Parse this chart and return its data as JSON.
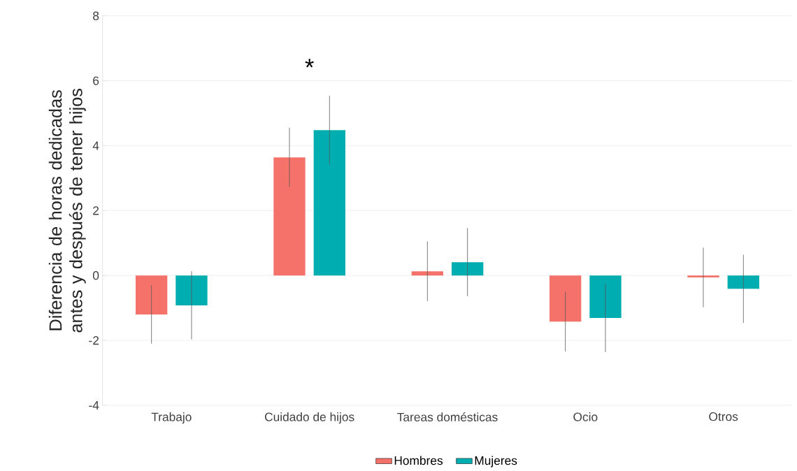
{
  "chart_data": {
    "type": "bar",
    "ylabel": "Diferencia de horas dedicadas antes y después de tener hijos",
    "categories": [
      "Trabajo",
      "Cuidado de hijos",
      "Tareas domésticas",
      "Ocio",
      "Otros"
    ],
    "series": [
      {
        "name": "Hombres",
        "color": "#f4726a",
        "values": [
          -1.2,
          3.64,
          0.13,
          -1.42,
          -0.06
        ],
        "errors": [
          0.9,
          0.91,
          0.92,
          0.92,
          0.92
        ]
      },
      {
        "name": "Mujeres",
        "color": "#00adb0",
        "values": [
          -0.92,
          4.48,
          0.41,
          -1.31,
          -0.41
        ],
        "errors": [
          1.05,
          1.06,
          1.05,
          1.05,
          1.05
        ]
      }
    ],
    "ylim": [
      -4,
      8
    ],
    "yticks": [
      -4,
      -2,
      0,
      2,
      4,
      6,
      8
    ],
    "grid": "y",
    "legend": "bottom",
    "annotations": [
      "*"
    ]
  }
}
